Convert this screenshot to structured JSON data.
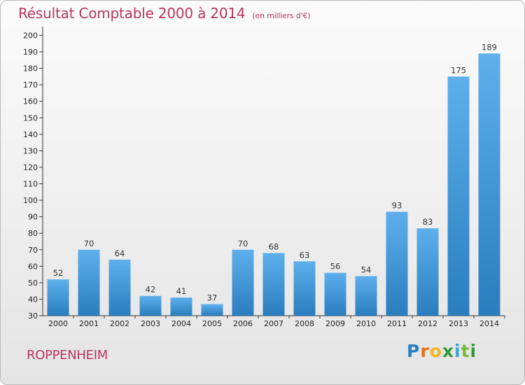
{
  "header": {
    "title": "Résultat Comptable 2000 à 2014",
    "subtitle": "(en milliers d'€)"
  },
  "footer": {
    "place": "ROPPENHEIM",
    "logo": [
      "P",
      "r",
      "o",
      "x",
      "i",
      "t",
      "i"
    ]
  },
  "colors": {
    "title": "#b8365e",
    "bar_top": "#5db0ec",
    "bar_bottom": "#2a7dbe"
  },
  "chart_data": {
    "type": "bar",
    "categories": [
      "2000",
      "2001",
      "2002",
      "2003",
      "2004",
      "2005",
      "2006",
      "2007",
      "2008",
      "2009",
      "2010",
      "2011",
      "2012",
      "2013",
      "2014"
    ],
    "values": [
      52,
      70,
      64,
      42,
      41,
      37,
      70,
      68,
      63,
      56,
      54,
      93,
      83,
      175,
      189
    ],
    "title": "Résultat Comptable 2000 à 2014",
    "ylim": [
      30,
      200
    ],
    "yticks": [
      30,
      40,
      50,
      60,
      70,
      80,
      90,
      100,
      110,
      120,
      130,
      140,
      150,
      160,
      170,
      180,
      190,
      200
    ],
    "grid": false,
    "legend": "none"
  }
}
